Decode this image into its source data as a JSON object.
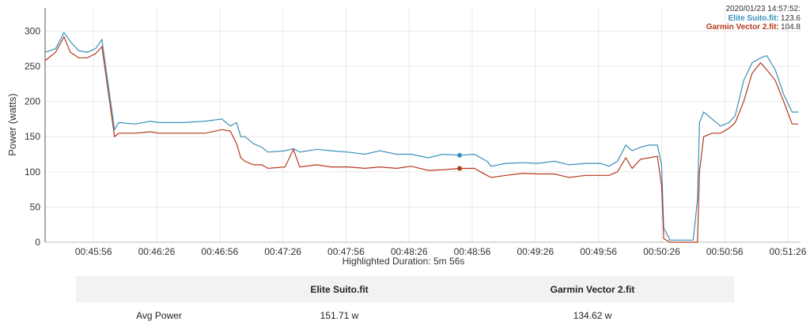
{
  "chart_data": {
    "type": "line",
    "y_label": "Power (watts)",
    "x_label": "Highlighted Duration: 5m 56s",
    "x": [
      "00:45:33",
      "00:45:38",
      "00:45:42",
      "00:45:45",
      "00:45:49",
      "00:45:53",
      "00:45:57",
      "00:46:00",
      "00:46:06",
      "00:46:08",
      "00:46:16",
      "00:46:23",
      "00:46:27",
      "00:46:38",
      "00:46:49",
      "00:46:57",
      "00:47:01",
      "00:47:04",
      "00:47:06",
      "00:47:08",
      "00:47:12",
      "00:47:16",
      "00:47:19",
      "00:47:27",
      "00:47:31",
      "00:47:34",
      "00:47:42",
      "00:47:49",
      "00:47:57",
      "00:48:05",
      "00:48:12",
      "00:48:20",
      "00:48:27",
      "00:48:35",
      "00:48:42",
      "00:48:50",
      "00:48:57",
      "00:49:03",
      "00:49:05",
      "00:49:12",
      "00:49:20",
      "00:49:27",
      "00:49:35",
      "00:49:42",
      "00:49:50",
      "00:49:57",
      "00:50:01",
      "00:50:05",
      "00:50:09",
      "00:50:12",
      "00:50:16",
      "00:50:20",
      "00:50:24",
      "00:50:26",
      "00:50:27",
      "00:50:30",
      "00:50:41",
      "00:50:43",
      "00:50:44",
      "00:50:46",
      "00:50:50",
      "00:50:54",
      "00:50:58",
      "00:51:01",
      "00:51:05",
      "00:51:09",
      "00:51:13",
      "00:51:16",
      "00:51:20",
      "00:51:24",
      "00:51:28",
      "00:51:31"
    ],
    "series": [
      {
        "name": "Elite Suito.fit",
        "color": "#3a90ba",
        "values": [
          270,
          275,
          298,
          285,
          272,
          270,
          275,
          288,
          160,
          170,
          168,
          172,
          170,
          170,
          172,
          175,
          165,
          170,
          150,
          150,
          140,
          135,
          128,
          130,
          133,
          128,
          132,
          130,
          128,
          125,
          130,
          125,
          125,
          120,
          125,
          123.6,
          125,
          115,
          108,
          112,
          113,
          112,
          115,
          110,
          112,
          112,
          108,
          115,
          138,
          130,
          135,
          138,
          138,
          110,
          20,
          3,
          3,
          60,
          170,
          185,
          175,
          165,
          170,
          180,
          230,
          255,
          262,
          265,
          245,
          210,
          185,
          185
        ]
      },
      {
        "name": "Garmin Vector 2.fit",
        "color": "#b23a1c",
        "values": [
          258,
          270,
          292,
          270,
          262,
          262,
          268,
          278,
          150,
          155,
          155,
          157,
          155,
          155,
          155,
          160,
          158,
          140,
          120,
          115,
          110,
          110,
          105,
          107,
          132,
          107,
          110,
          107,
          107,
          105,
          107,
          105,
          108,
          102,
          103,
          104.8,
          105,
          95,
          92,
          95,
          98,
          97,
          97,
          92,
          95,
          95,
          95,
          100,
          120,
          105,
          118,
          120,
          122,
          80,
          5,
          0,
          0,
          0,
          100,
          150,
          155,
          155,
          162,
          170,
          200,
          240,
          255,
          245,
          230,
          200,
          168,
          168
        ]
      }
    ],
    "marker_x": "00:48:50",
    "xlim": [
      "00:45:33",
      "00:51:32"
    ],
    "xticks": [
      "00:45:56",
      "00:46:26",
      "00:46:56",
      "00:47:26",
      "00:47:56",
      "00:48:26",
      "00:48:56",
      "00:49:26",
      "00:49:56",
      "00:50:26",
      "00:50:56",
      "00:51:26"
    ],
    "ylim": [
      0,
      333
    ],
    "yticks": [
      0,
      50,
      100,
      150,
      200,
      250,
      300
    ],
    "grid": true,
    "tooltip": {
      "time": "2020/01/23 14:57:52:",
      "entries": [
        {
          "name": "Elite Suito.fit:",
          "value": 123.6
        },
        {
          "name": "Garmin Vector 2.fit:",
          "value": 104.8
        }
      ]
    }
  },
  "table": {
    "columns": [
      "Elite Suito.fit",
      "Garmin Vector 2.fit"
    ],
    "rows": [
      {
        "label": "Avg Power",
        "cells": [
          "151.71 w",
          "134.62 w"
        ]
      }
    ]
  }
}
